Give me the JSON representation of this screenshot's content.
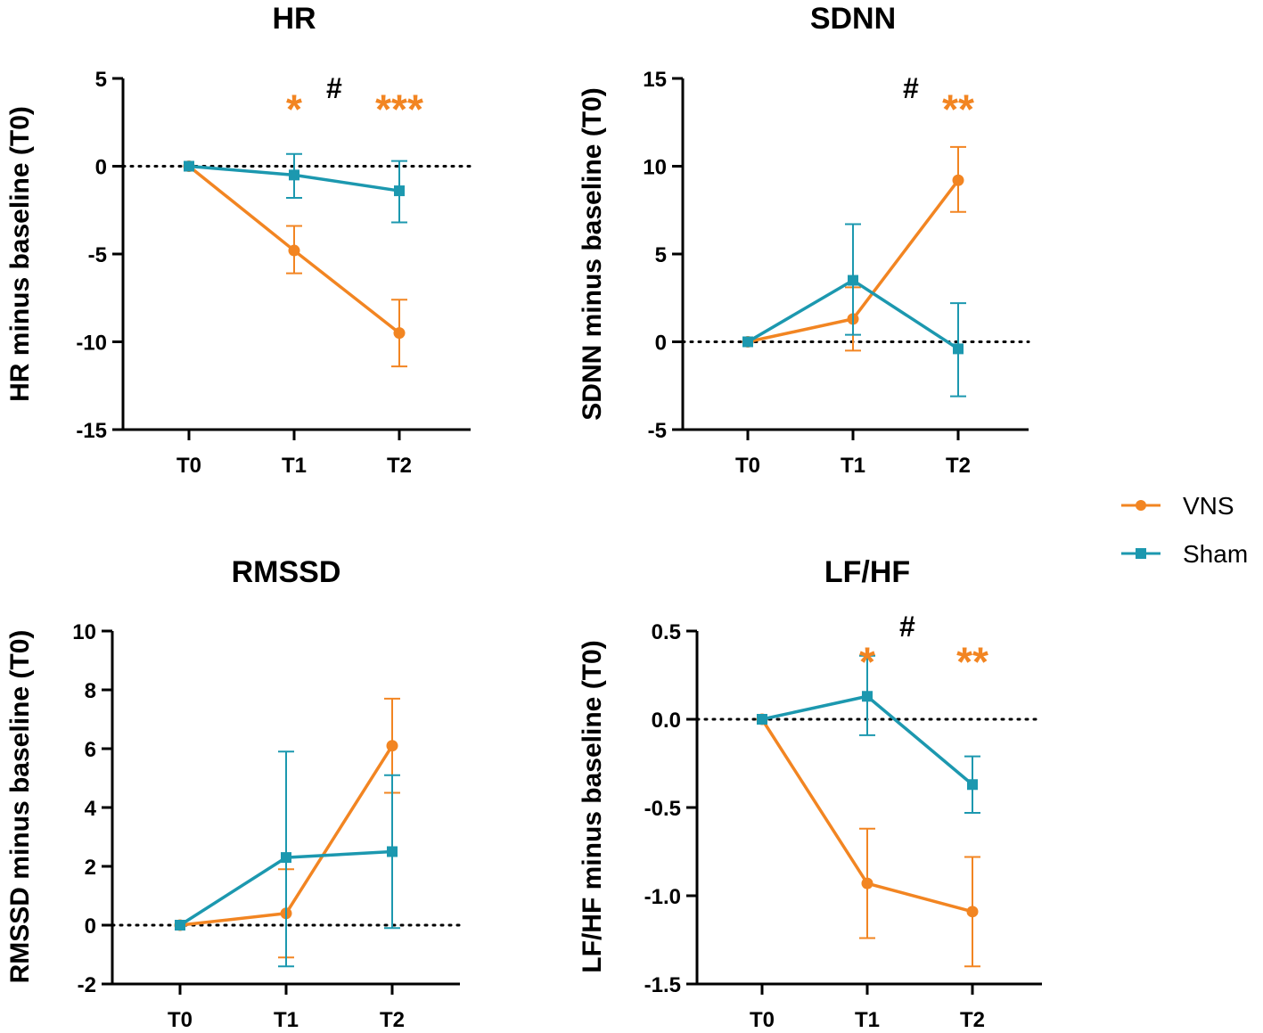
{
  "legend": [
    {
      "name": "VNS",
      "color": "#F28522",
      "marker": "circle"
    },
    {
      "name": "Sham",
      "color": "#1C98AF",
      "marker": "square"
    }
  ],
  "chart_data": [
    {
      "type": "line",
      "title": "HR",
      "ylabel": "HR minus baseline (T0)",
      "categories": [
        "T0",
        "T1",
        "T2"
      ],
      "ylim": [
        -15,
        5
      ],
      "yticks": [
        5,
        0,
        -5,
        -10,
        -15
      ],
      "ytick_labels": [
        "5",
        "0",
        "-5",
        "-10",
        "-15"
      ],
      "reference_line": 0,
      "series": [
        {
          "name": "VNS",
          "values": [
            0,
            -4.8,
            -9.5
          ],
          "err_low": [
            0,
            -6.1,
            -11.4
          ],
          "err_high": [
            0,
            -3.4,
            -7.6
          ]
        },
        {
          "name": "Sham",
          "values": [
            0,
            -0.5,
            -1.4
          ],
          "err_low": [
            0,
            -1.8,
            -3.2
          ],
          "err_high": [
            0,
            0.7,
            0.3
          ]
        }
      ],
      "annotations": [
        {
          "text": "*",
          "cat": 1,
          "offset": 0,
          "value": 3.6,
          "color": "#F28522",
          "size": 46
        },
        {
          "text": "#",
          "cat": 1.5,
          "offset": -0.12,
          "value": 4.7,
          "color": "#000000",
          "size": 32
        },
        {
          "text": "***",
          "cat": 2,
          "offset": 0,
          "value": 3.6,
          "color": "#F28522",
          "size": 46
        }
      ]
    },
    {
      "type": "line",
      "title": "SDNN",
      "ylabel": "SDNN minus baseline (T0)",
      "categories": [
        "T0",
        "T1",
        "T2"
      ],
      "ylim": [
        -5,
        15
      ],
      "yticks": [
        15,
        10,
        5,
        0,
        -5
      ],
      "ytick_labels": [
        "15",
        "10",
        "5",
        "0",
        "-5"
      ],
      "reference_line": 0,
      "series": [
        {
          "name": "VNS",
          "values": [
            0,
            1.3,
            9.2
          ],
          "err_low": [
            0,
            -0.5,
            7.4
          ],
          "err_high": [
            0,
            3.1,
            11.1
          ]
        },
        {
          "name": "Sham",
          "values": [
            0,
            3.5,
            -0.4
          ],
          "err_low": [
            0,
            0.4,
            -3.1
          ],
          "err_high": [
            0,
            6.7,
            2.2
          ]
        }
      ],
      "annotations": [
        {
          "text": "#",
          "cat": 1.5,
          "offset": 0.05,
          "value": 14.7,
          "color": "#000000",
          "size": 32
        },
        {
          "text": "**",
          "cat": 2,
          "offset": 0,
          "value": 13.6,
          "color": "#F28522",
          "size": 46
        }
      ]
    },
    {
      "type": "line",
      "title": "RMSSD",
      "ylabel": "RMSSD minus baseline (T0)",
      "categories": [
        "T0",
        "T1",
        "T2"
      ],
      "ylim": [
        -2,
        10
      ],
      "yticks": [
        10,
        8,
        6,
        4,
        2,
        0,
        -2
      ],
      "ytick_labels": [
        "10",
        "8",
        "6",
        "4",
        "2",
        "0",
        "-2"
      ],
      "reference_line": 0,
      "series": [
        {
          "name": "VNS",
          "values": [
            0,
            0.4,
            6.1
          ],
          "err_low": [
            0,
            -1.1,
            4.5
          ],
          "err_high": [
            0,
            1.9,
            7.7
          ]
        },
        {
          "name": "Sham",
          "values": [
            0,
            2.3,
            2.5
          ],
          "err_low": [
            0,
            -1.4,
            -0.1
          ],
          "err_high": [
            0,
            5.9,
            5.1
          ]
        }
      ],
      "annotations": []
    },
    {
      "type": "line",
      "title": "LF/HF",
      "ylabel": "LF/HF minus baseline (T0)",
      "categories": [
        "T0",
        "T1",
        "T2"
      ],
      "ylim": [
        -1.5,
        0.5
      ],
      "yticks": [
        0.5,
        0.0,
        -0.5,
        -1.0,
        -1.5
      ],
      "ytick_labels": [
        "0.5",
        "0.0",
        "-0.5",
        "-1.0",
        "-1.5"
      ],
      "reference_line": 0,
      "series": [
        {
          "name": "VNS",
          "values": [
            0,
            -0.93,
            -1.09
          ],
          "err_low": [
            0,
            -1.24,
            -1.4
          ],
          "err_high": [
            0,
            -0.62,
            -0.78
          ]
        },
        {
          "name": "Sham",
          "values": [
            0,
            0.13,
            -0.37
          ],
          "err_low": [
            0,
            -0.09,
            -0.53
          ],
          "err_high": [
            0,
            0.36,
            -0.21
          ]
        }
      ],
      "annotations": [
        {
          "text": "*",
          "cat": 1,
          "offset": 0,
          "value": 0.36,
          "color": "#F28522",
          "size": 46
        },
        {
          "text": "#",
          "cat": 1.5,
          "offset": -0.12,
          "value": 0.55,
          "color": "#000000",
          "size": 32
        },
        {
          "text": "**",
          "cat": 2,
          "offset": 0,
          "value": 0.36,
          "color": "#F28522",
          "size": 46
        }
      ]
    }
  ]
}
